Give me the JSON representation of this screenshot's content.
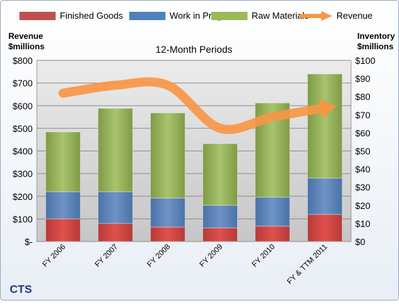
{
  "chart_data": {
    "type": "bar",
    "stacked": true,
    "title": "12-Month Periods",
    "company": "CTS",
    "left_axis_label": [
      "Revenue",
      "$millions"
    ],
    "right_axis_label": [
      "Inventory",
      "$millions"
    ],
    "categories": [
      "FY 2006",
      "FY 2007",
      "FY 2008",
      "FY 2009",
      "FY 2010",
      "FY & TTM 2011"
    ],
    "series": [
      {
        "name": "Finished Goods",
        "axis": "right",
        "color": "#C0504D",
        "values": [
          12.5,
          10,
          8,
          7.5,
          8.5,
          15
        ]
      },
      {
        "name": "Work in Progress",
        "axis": "right",
        "color": "#4F81BD",
        "values": [
          15,
          17.5,
          16,
          12.5,
          16,
          20
        ]
      },
      {
        "name": "Raw Materials",
        "axis": "right",
        "color": "#9BBB59",
        "values": [
          33,
          46,
          47,
          34,
          52,
          57.5
        ]
      }
    ],
    "line_series": {
      "name": "Revenue",
      "axis": "left",
      "color": "#F79646",
      "values": [
        655,
        690,
        690,
        500,
        550,
        590
      ]
    },
    "left_axis": {
      "ticks": [
        "$-",
        "$100",
        "$200",
        "$300",
        "$400",
        "$500",
        "$600",
        "$700",
        "$800"
      ],
      "ylim": [
        0,
        800
      ]
    },
    "right_axis": {
      "ticks": [
        "$0",
        "$10",
        "$20",
        "$30",
        "$40",
        "$50",
        "$60",
        "$70",
        "$80",
        "$90",
        "$100"
      ],
      "ylim": [
        0,
        100
      ]
    },
    "legend_position": "top",
    "grid": true
  }
}
